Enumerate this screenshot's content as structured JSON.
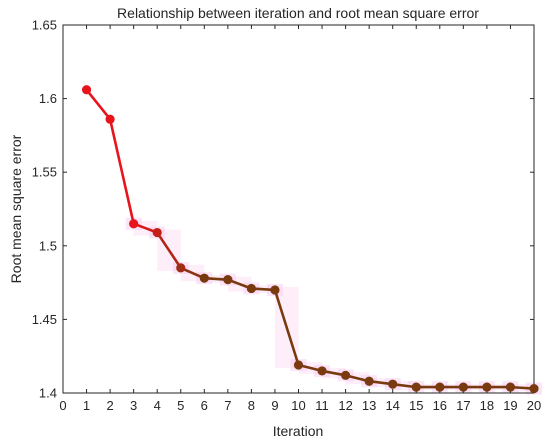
{
  "chart_data": {
    "type": "line",
    "title": "Relationship between iteration and root mean square error",
    "xlabel": "Iteration",
    "ylabel": "Root mean square error",
    "xlim": [
      0,
      20
    ],
    "ylim": [
      1.4,
      1.65
    ],
    "x_ticks": [
      "0",
      "1",
      "2",
      "3",
      "4",
      "5",
      "6",
      "7",
      "8",
      "9",
      "10",
      "11",
      "12",
      "13",
      "14",
      "15",
      "16",
      "17",
      "18",
      "19",
      "20"
    ],
    "y_ticks": [
      "1.4",
      "1.45",
      "1.5",
      "1.55",
      "1.6",
      "1.65"
    ],
    "grid": false,
    "series": [
      {
        "x": [
          1,
          2,
          3,
          4,
          5,
          6,
          7,
          8,
          9,
          10,
          11,
          12,
          13,
          14,
          15,
          16,
          17,
          18,
          19,
          20
        ],
        "values": [
          1.606,
          1.586,
          1.515,
          1.509,
          1.485,
          1.478,
          1.477,
          1.471,
          1.47,
          1.419,
          1.415,
          1.412,
          1.408,
          1.406,
          1.404,
          1.404,
          1.404,
          1.404,
          1.404,
          1.403
        ],
        "color_start": "#e8141c",
        "color_end": "#7a3a10"
      }
    ]
  }
}
